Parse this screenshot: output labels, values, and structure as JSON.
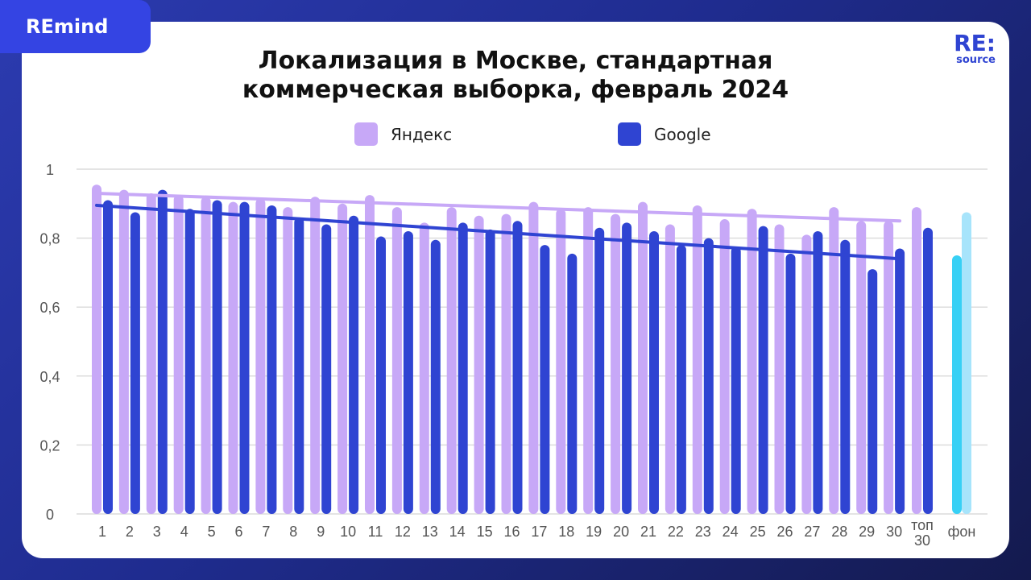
{
  "brand": {
    "label": "REmind"
  },
  "logo": {
    "top": "RE:",
    "bottom": "source"
  },
  "header": {
    "title_line1": "Локализация в Москве, стандартная",
    "title_line2": "коммерческая выборка, февраль 2024"
  },
  "legend": {
    "items": [
      {
        "label": "Яндекс",
        "color": "#c7a8f7"
      },
      {
        "label": "Google",
        "color": "#2f44d2"
      }
    ]
  },
  "colors": {
    "yandex": "#c7a8f7",
    "google": "#2f44d2",
    "background_a": "#37d0f5",
    "background_b": "#a7e4fb",
    "grid": "#dcdcdc",
    "axis_text": "#555555"
  },
  "chart_data": {
    "type": "bar",
    "title": "Локализация в Москве, стандартная коммерческая выборка, февраль 2024",
    "xlabel": "",
    "ylabel": "",
    "ylim": [
      0,
      1
    ],
    "yticks": [
      "0",
      "0,2",
      "0,4",
      "0,6",
      "0,8",
      "1"
    ],
    "grid": true,
    "legend_position": "top",
    "categories": [
      "1",
      "2",
      "3",
      "4",
      "5",
      "6",
      "7",
      "8",
      "9",
      "10",
      "11",
      "12",
      "13",
      "14",
      "15",
      "16",
      "17",
      "18",
      "19",
      "20",
      "21",
      "22",
      "23",
      "24",
      "25",
      "26",
      "27",
      "28",
      "29",
      "30",
      "топ 30",
      "фон"
    ],
    "series": [
      {
        "name": "Яндекс",
        "values": [
          0.955,
          0.94,
          0.93,
          0.925,
          0.92,
          0.905,
          0.915,
          0.89,
          0.92,
          0.9,
          0.925,
          0.89,
          0.845,
          0.89,
          0.865,
          0.87,
          0.905,
          0.885,
          0.89,
          0.87,
          0.905,
          0.84,
          0.895,
          0.855,
          0.885,
          0.84,
          0.81,
          0.89,
          0.85,
          0.85,
          0.89,
          0.875
        ]
      },
      {
        "name": "Google",
        "values": [
          0.91,
          0.875,
          0.94,
          0.885,
          0.91,
          0.905,
          0.895,
          0.86,
          0.84,
          0.865,
          0.805,
          0.82,
          0.795,
          0.845,
          0.825,
          0.85,
          0.78,
          0.755,
          0.83,
          0.845,
          0.82,
          0.78,
          0.8,
          0.775,
          0.835,
          0.755,
          0.82,
          0.795,
          0.71,
          0.77,
          0.83,
          0.75
        ]
      }
    ],
    "background_bars": {
      "category": "фон",
      "values": [
        0.75,
        0.875
      ],
      "colors": [
        "#37d0f5",
        "#a7e4fb"
      ]
    },
    "trendlines": [
      {
        "series": "Яндекс",
        "from": [
          1,
          0.93
        ],
        "to": [
          30,
          0.85
        ]
      },
      {
        "series": "Google",
        "from": [
          1,
          0.895
        ],
        "to": [
          30,
          0.74
        ]
      }
    ]
  }
}
